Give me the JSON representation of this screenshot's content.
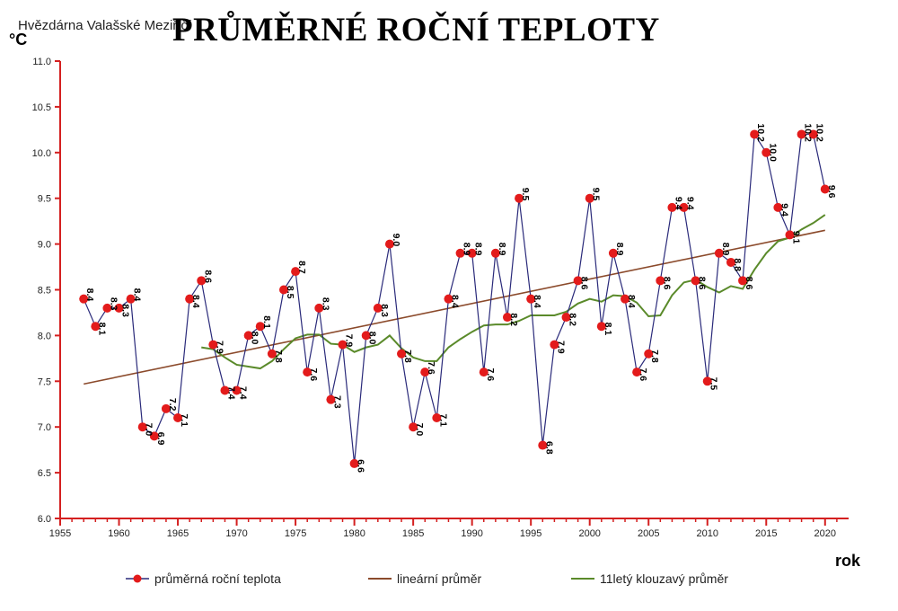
{
  "source": "Hvězdárna Valašské Meziříčí",
  "title": "PRŮMĚRNÉ ROČNÍ TEPLOTY",
  "chart_data": {
    "type": "line",
    "ylabel": "°C",
    "xlabel": "rok",
    "xlim": [
      1955,
      2022
    ],
    "ylim": [
      6.0,
      11.0
    ],
    "x_ticks": [
      "1955",
      "1960",
      "1965",
      "1970",
      "1975",
      "1980",
      "1985",
      "1990",
      "1995",
      "2000",
      "2005",
      "2010",
      "2015",
      "2020"
    ],
    "y_ticks": [
      "6.0",
      "6.5",
      "7.0",
      "7.5",
      "8.0",
      "8.5",
      "9.0",
      "9.5",
      "10.0",
      "10.5",
      "11.0"
    ],
    "grid": false,
    "legend_position": "bottom",
    "series": [
      {
        "name": "průměrná roční teplota",
        "color": "#2a2a7a",
        "marker_color": "#e31b1b",
        "x": [
          1957,
          1958,
          1959,
          1960,
          1961,
          1962,
          1963,
          1964,
          1965,
          1966,
          1967,
          1968,
          1969,
          1970,
          1971,
          1972,
          1973,
          1974,
          1975,
          1976,
          1977,
          1978,
          1979,
          1980,
          1981,
          1982,
          1983,
          1984,
          1985,
          1986,
          1987,
          1988,
          1989,
          1990,
          1991,
          1992,
          1993,
          1994,
          1995,
          1996,
          1997,
          1998,
          1999,
          2000,
          2001,
          2002,
          2003,
          2004,
          2005,
          2006,
          2007,
          2008,
          2009,
          2010,
          2011,
          2012,
          2013,
          2014,
          2015,
          2016,
          2017,
          2018,
          2019,
          2020
        ],
        "values": [
          8.4,
          8.1,
          8.3,
          8.3,
          8.4,
          7.0,
          6.9,
          7.2,
          7.1,
          8.4,
          8.6,
          7.9,
          7.4,
          7.4,
          8.0,
          8.1,
          7.8,
          8.5,
          8.7,
          7.6,
          8.3,
          7.3,
          7.9,
          6.6,
          8.0,
          8.3,
          9.0,
          7.8,
          7.0,
          7.6,
          7.1,
          8.4,
          8.9,
          8.9,
          7.6,
          8.9,
          8.2,
          9.5,
          8.4,
          6.8,
          7.9,
          8.2,
          8.6,
          9.5,
          8.1,
          8.9,
          8.4,
          7.6,
          7.8,
          8.6,
          9.4,
          9.4,
          8.6,
          7.5,
          8.9,
          8.8,
          8.6,
          10.2,
          10.0,
          9.4,
          9.1,
          10.2,
          10.2,
          9.6
        ],
        "labels": [
          "8.4",
          "8.1",
          "8.3",
          "8.3",
          "8.4",
          "7.0",
          "6.9",
          "7.2",
          "7.1",
          "8.4",
          "8.6",
          "7.9",
          "7.4",
          "7.4",
          "8.0",
          "8.1",
          "7.8",
          "8.5",
          "8.7",
          "7.6",
          "8.3",
          "7.3",
          "7.9",
          "6.6",
          "8.0",
          "8.3",
          "9.0",
          "7.8",
          "7.0",
          "7.6",
          "7.1",
          "8.4",
          "8.9",
          "8.9",
          "7.6",
          "8.9",
          "8.2",
          "9.5",
          "8.4",
          "6.8",
          "7.9",
          "8.2",
          "8.6",
          "9.5",
          "8.1",
          "8.9",
          "8.4",
          "7.6",
          "7.8",
          "8.6",
          "9.4",
          "9.4",
          "8.6",
          "7.5",
          "8.9",
          "8.8",
          "8.6",
          "10.2",
          "10.0",
          "9.4",
          "9.1",
          "10.2",
          "10.2",
          "9.6"
        ]
      },
      {
        "name": "lineární průměr",
        "color": "#8b4a2b",
        "x": [
          1957,
          2020
        ],
        "values": [
          7.47,
          9.15
        ]
      },
      {
        "name": "11letý klouzavý průměr",
        "color": "#5a8a2a",
        "x": [
          1967,
          1968,
          1969,
          1970,
          1971,
          1972,
          1973,
          1974,
          1975,
          1976,
          1977,
          1978,
          1979,
          1980,
          1981,
          1982,
          1983,
          1984,
          1985,
          1986,
          1987,
          1988,
          1989,
          1990,
          1991,
          1992,
          1993,
          1994,
          1995,
          1996,
          1997,
          1998,
          1999,
          2000,
          2001,
          2002,
          2003,
          2004,
          2005,
          2006,
          2007,
          2008,
          2009,
          2010,
          2011,
          2012,
          2013,
          2014,
          2015,
          2016,
          2017,
          2018,
          2019,
          2020
        ],
        "values": [
          7.87,
          7.85,
          7.76,
          7.68,
          7.66,
          7.64,
          7.72,
          7.85,
          7.97,
          8.01,
          8.01,
          7.91,
          7.9,
          7.82,
          7.87,
          7.9,
          8.0,
          7.86,
          7.76,
          7.72,
          7.72,
          7.87,
          7.96,
          8.04,
          8.11,
          8.12,
          8.12,
          8.16,
          8.22,
          8.22,
          8.22,
          8.26,
          8.35,
          8.4,
          8.37,
          8.44,
          8.43,
          8.36,
          8.21,
          8.22,
          8.44,
          8.58,
          8.61,
          8.53,
          8.47,
          8.54,
          8.51,
          8.72,
          8.9,
          9.03,
          9.07,
          9.16,
          9.23,
          9.32
        ]
      }
    ]
  }
}
